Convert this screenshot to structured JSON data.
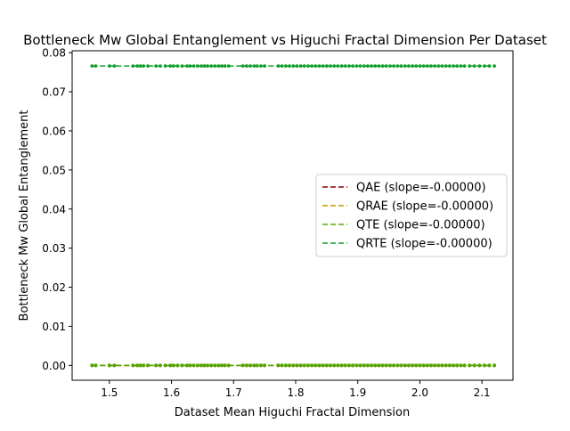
{
  "chart_data": {
    "type": "scatter",
    "title": "Bottleneck Mw Global Entanglement vs Higuchi Fractal Dimension Per Dataset",
    "xlabel": "Dataset Mean Higuchi Fractal Dimension",
    "ylabel": "Bottleneck Mw Global Entanglement",
    "xlim": [
      1.44,
      2.15
    ],
    "ylim": [
      -0.0038,
      0.0805
    ],
    "x_ticks": [
      1.5,
      1.6,
      1.7,
      1.8,
      1.9,
      2.0,
      2.1
    ],
    "x_tick_labels": [
      "1.5",
      "1.6",
      "1.7",
      "1.8",
      "1.9",
      "2.0",
      "2.1"
    ],
    "y_ticks": [
      0.0,
      0.01,
      0.02,
      0.03,
      0.04,
      0.05,
      0.06,
      0.07,
      0.08
    ],
    "y_tick_labels": [
      "0.00",
      "0.01",
      "0.02",
      "0.03",
      "0.04",
      "0.05",
      "0.06",
      "0.07",
      "0.08"
    ],
    "grid": false,
    "legend_position": "center-right",
    "x_points": [
      1.472,
      1.478,
      1.5,
      1.508,
      1.538,
      1.545,
      1.55,
      1.555,
      1.562,
      1.575,
      1.582,
      1.59,
      1.598,
      1.603,
      1.61,
      1.617,
      1.625,
      1.63,
      1.636,
      1.642,
      1.648,
      1.653,
      1.658,
      1.664,
      1.67,
      1.676,
      1.681,
      1.686,
      1.692,
      1.715,
      1.721,
      1.727,
      1.733,
      1.738,
      1.744,
      1.75,
      1.772,
      1.778,
      1.784,
      1.79,
      1.796,
      1.802,
      1.808,
      1.814,
      1.82,
      1.826,
      1.832,
      1.838,
      1.844,
      1.85,
      1.856,
      1.862,
      1.868,
      1.874,
      1.88,
      1.886,
      1.892,
      1.898,
      1.904,
      1.91,
      1.916,
      1.922,
      1.928,
      1.934,
      1.94,
      1.946,
      1.952,
      1.958,
      1.964,
      1.97,
      1.976,
      1.982,
      1.988,
      1.994,
      2.0,
      2.006,
      2.012,
      2.018,
      2.024,
      2.03,
      2.036,
      2.042,
      2.048,
      2.054,
      2.06,
      2.066,
      2.072,
      2.08,
      2.088,
      2.096,
      2.104,
      2.112,
      2.12
    ],
    "series": [
      {
        "name": "QAE (slope=-0.00000)",
        "color": "#8b0000",
        "values": 0.0,
        "fit": [
          0.0,
          0.0
        ]
      },
      {
        "name": "QRAE (slope=-0.00000)",
        "color": "#c89600",
        "values": 0.0,
        "fit": [
          0.0,
          0.0
        ]
      },
      {
        "name": "QTE (slope=-0.00000)",
        "color": "#4fa800",
        "values": 0.0,
        "fit": [
          0.0,
          0.0
        ]
      },
      {
        "name": "QRTE (slope=-0.00000)",
        "color": "#12a02c",
        "values": 0.0766,
        "fit": [
          0.0766,
          0.0766
        ]
      }
    ]
  }
}
